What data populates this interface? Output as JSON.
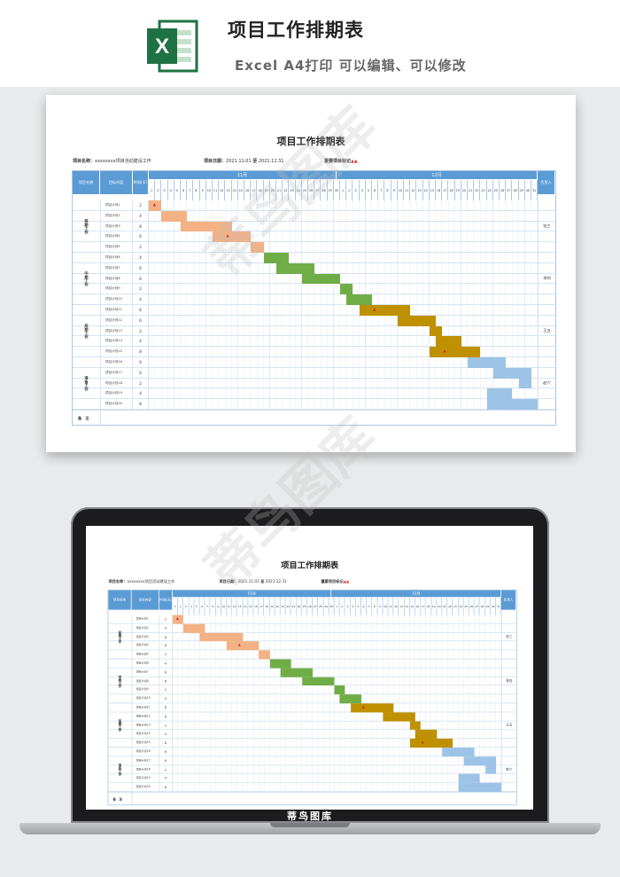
{
  "header": {
    "title": "项目工作排期表",
    "subtitle": "Excel A4打印 可以编辑、可以修改",
    "app_icon": "excel-icon",
    "app_icon_letter": "X",
    "brand_color": "#1f7244"
  },
  "sheet": {
    "title": "项目工作排期表",
    "project_label": "项目名称：",
    "project_value": "xxxxxxxx项目活动建设工作",
    "date_label": "项目日期：",
    "date_start": "2021.11.01",
    "date_to": "至",
    "date_end": "2021.12.31",
    "milestone_label": "重要项目标记",
    "milestone_mark": "▲▲",
    "col_phase": "项目名称",
    "col_content": "目标内容",
    "col_days": "时间(天)",
    "col_owner": "负责人",
    "months": [
      "11月",
      "12月"
    ],
    "month1_days": [
      "1",
      "2",
      "3",
      "4",
      "5",
      "6",
      "7",
      "8",
      "9",
      "10",
      "11",
      "12",
      "13",
      "14",
      "15",
      "16",
      "17",
      "18",
      "19",
      "20",
      "21",
      "22",
      "23",
      "24",
      "25",
      "26",
      "27",
      "28",
      "29",
      "30"
    ],
    "month2_days": [
      "1",
      "2",
      "3",
      "4",
      "5",
      "6",
      "7",
      "8",
      "9",
      "10",
      "11",
      "12",
      "13",
      "14",
      "15",
      "16",
      "17",
      "18",
      "19",
      "20",
      "21",
      "22",
      "23",
      "24",
      "25",
      "26",
      "27",
      "28",
      "29",
      "30",
      "31"
    ],
    "phases": [
      {
        "name": "前期工作",
        "owner": "张三",
        "color": "#f4b183"
      },
      {
        "name": "中期工作",
        "owner": "李四",
        "color": "#70ad47"
      },
      {
        "name": "后期工作",
        "owner": "王五",
        "color": "#bf9000"
      },
      {
        "name": "准备工作",
        "owner": "赵六",
        "color": "#9dc3e6"
      }
    ],
    "tasks": [
      {
        "name": "项目计划1",
        "days": "2",
        "phase": 0,
        "start": 0,
        "flag": true
      },
      {
        "name": "项目计划2",
        "days": "4",
        "phase": 0,
        "start": 2,
        "flag": false
      },
      {
        "name": "项目计划3",
        "days": "8",
        "phase": 0,
        "start": 5,
        "flag": false
      },
      {
        "name": "项目计划4",
        "days": "6",
        "phase": 0,
        "start": 10,
        "flag": true
      },
      {
        "name": "项目计划5",
        "days": "2",
        "phase": 0,
        "start": 16,
        "flag": false
      },
      {
        "name": "项目计划6",
        "days": "4",
        "phase": 1,
        "start": 18,
        "flag": false
      },
      {
        "name": "项目计划7",
        "days": "6",
        "phase": 1,
        "start": 20,
        "flag": false
      },
      {
        "name": "项目计划8",
        "days": "6",
        "phase": 1,
        "start": 24,
        "flag": false
      },
      {
        "name": "项目计划9",
        "days": "2",
        "phase": 1,
        "start": 30,
        "flag": false
      },
      {
        "name": "项目计划10",
        "days": "4",
        "phase": 1,
        "start": 31,
        "flag": false
      },
      {
        "name": "项目计划11",
        "days": "8",
        "phase": 2,
        "start": 33,
        "flag": true
      },
      {
        "name": "项目计划12",
        "days": "6",
        "phase": 2,
        "start": 39,
        "flag": false
      },
      {
        "name": "项目计划13",
        "days": "2",
        "phase": 2,
        "start": 44,
        "flag": false
      },
      {
        "name": "项目计划14",
        "days": "4",
        "phase": 2,
        "start": 45,
        "flag": false
      },
      {
        "name": "项目计划15",
        "days": "8",
        "phase": 2,
        "start": 44,
        "flag": true
      },
      {
        "name": "项目计划16",
        "days": "6",
        "phase": 3,
        "start": 50,
        "flag": false
      },
      {
        "name": "项目计划17",
        "days": "6",
        "phase": 3,
        "start": 54,
        "flag": false
      },
      {
        "name": "项目计划18",
        "days": "2",
        "phase": 3,
        "start": 58,
        "flag": false
      },
      {
        "name": "项目计划19",
        "days": "4",
        "phase": 3,
        "start": 53,
        "flag": false
      },
      {
        "name": "项目计划20",
        "days": "8",
        "phase": 3,
        "start": 53,
        "flag": false
      }
    ],
    "notes_label": "备注"
  },
  "laptop": {
    "label": "蒂鸟图库"
  },
  "watermark": {
    "text": "蒂鸟图库"
  }
}
